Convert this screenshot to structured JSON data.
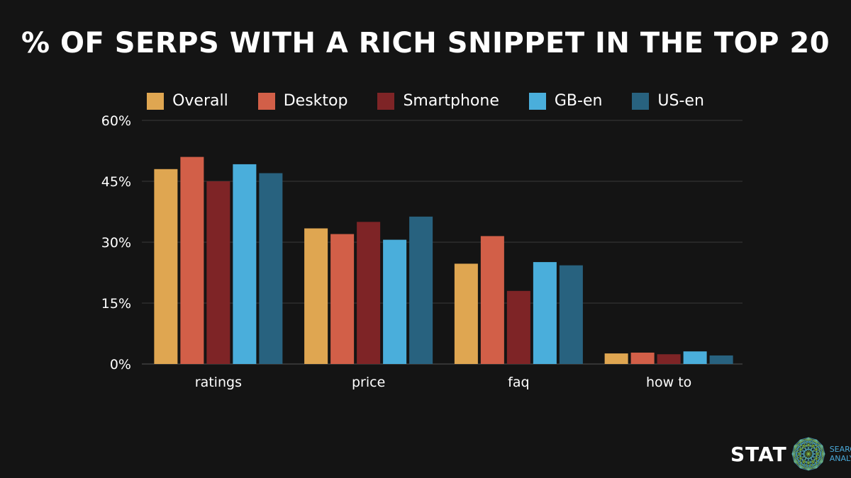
{
  "chart_data": {
    "type": "bar",
    "title": "% OF SERPS WITH A RICH SNIPPET IN THE TOP 20",
    "categories": [
      "ratings",
      "price",
      "faq",
      "how to"
    ],
    "series": [
      {
        "name": "Overall",
        "color": "#dfa651",
        "values": [
          48,
          33.4,
          24.7,
          2.6
        ]
      },
      {
        "name": "Desktop",
        "color": "#d25f48",
        "values": [
          51,
          32,
          31.5,
          2.8
        ]
      },
      {
        "name": "Smartphone",
        "color": "#7e2426",
        "values": [
          45,
          35,
          18,
          2.4
        ]
      },
      {
        "name": "GB-en",
        "color": "#4aaedb",
        "values": [
          49.2,
          30.6,
          25.1,
          3.1
        ]
      },
      {
        "name": "US-en",
        "color": "#28627f",
        "values": [
          47,
          36.3,
          24.3,
          2.1
        ]
      }
    ],
    "ylim": [
      0,
      60
    ],
    "yticks": [
      "0%",
      "15%",
      "30%",
      "45%",
      "60%"
    ],
    "grid": true,
    "legend": "top"
  },
  "logo": {
    "name": "STAT",
    "sub1": "SEARCH",
    "sub2": "ANALYTICS"
  }
}
